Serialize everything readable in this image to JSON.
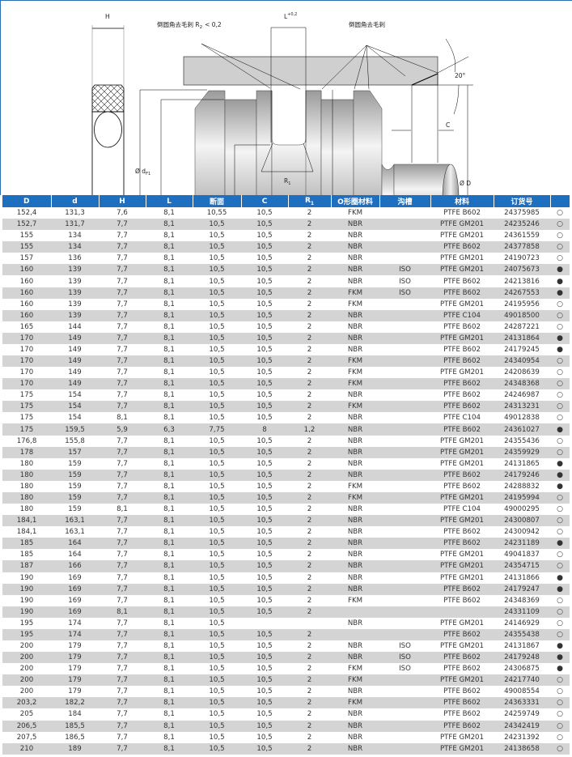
{
  "drawing": {
    "label_H": "H",
    "label_chamfer_r2": "倒圆角去毛刺 R",
    "label_r2_sub": "2",
    "label_r2_value": "< 0,2",
    "label_L": "L",
    "label_L_tol": "+0,2",
    "label_chamfer": "倒圆角去毛刺",
    "label_angle": "20°",
    "label_C": "C",
    "label_D": "Ø D",
    "label_dF1": "Ø d",
    "label_dF1_sub": "F1",
    "label_dF": "Ø d",
    "label_dF_sub": "F",
    "label_d": "Ø d",
    "label_d2": "Ø d",
    "label_d2_sub": "2",
    "label_R1": "R",
    "label_R1_sub": "1"
  },
  "table": {
    "headers": [
      "D",
      "d",
      "H",
      "L",
      "断面",
      "C",
      "R1",
      "O形圈材料",
      "沟槽",
      "材料",
      "订货号",
      ""
    ],
    "legend": {
      "filled": "●",
      "open": "○"
    },
    "header_color": "#1f6fc0",
    "stripe_color": "#d4d4d4",
    "rows": [
      [
        "152,4",
        "131,3",
        "7,6",
        "8,1",
        "10,55",
        "10,5",
        "2",
        "FKM",
        "",
        "PTFE B602",
        "24375985",
        "open"
      ],
      [
        "152,7",
        "131,7",
        "7,7",
        "8,1",
        "10,5",
        "10,5",
        "2",
        "NBR",
        "",
        "PTFE GM201",
        "24235246",
        "open"
      ],
      [
        "155",
        "134",
        "7,7",
        "8,1",
        "10,5",
        "10,5",
        "2",
        "NBR",
        "",
        "PTFE GM201",
        "24361559",
        "open"
      ],
      [
        "155",
        "134",
        "7,7",
        "8,1",
        "10,5",
        "10,5",
        "2",
        "NBR",
        "",
        "PTFE B602",
        "24377858",
        "open"
      ],
      [
        "157",
        "136",
        "7,7",
        "8,1",
        "10,5",
        "10,5",
        "2",
        "NBR",
        "",
        "PTFE GM201",
        "24190723",
        "open"
      ],
      [
        "160",
        "139",
        "7,7",
        "8,1",
        "10,5",
        "10,5",
        "2",
        "NBR",
        "ISO",
        "PTFE GM201",
        "24075673",
        "filled"
      ],
      [
        "160",
        "139",
        "7,7",
        "8,1",
        "10,5",
        "10,5",
        "2",
        "NBR",
        "ISO",
        "PTFE B602",
        "24213816",
        "filled"
      ],
      [
        "160",
        "139",
        "7,7",
        "8,1",
        "10,5",
        "10,5",
        "2",
        "FKM",
        "ISO",
        "PTFE B602",
        "24267553",
        "filled"
      ],
      [
        "160",
        "139",
        "7,7",
        "8,1",
        "10,5",
        "10,5",
        "2",
        "FKM",
        "",
        "PTFE GM201",
        "24195956",
        "open"
      ],
      [
        "160",
        "139",
        "7,7",
        "8,1",
        "10,5",
        "10,5",
        "2",
        "NBR",
        "",
        "PTFE C104",
        "49018500",
        "open"
      ],
      [
        "165",
        "144",
        "7,7",
        "8,1",
        "10,5",
        "10,5",
        "2",
        "NBR",
        "",
        "PTFE B602",
        "24287221",
        "open"
      ],
      [
        "170",
        "149",
        "7,7",
        "8,1",
        "10,5",
        "10,5",
        "2",
        "NBR",
        "",
        "PTFE GM201",
        "24131864",
        "filled"
      ],
      [
        "170",
        "149",
        "7,7",
        "8,1",
        "10,5",
        "10,5",
        "2",
        "NBR",
        "",
        "PTFE B602",
        "24179245",
        "filled"
      ],
      [
        "170",
        "149",
        "7,7",
        "8,1",
        "10,5",
        "10,5",
        "2",
        "FKM",
        "",
        "PTFE B602",
        "24340954",
        "open"
      ],
      [
        "170",
        "149",
        "7,7",
        "8,1",
        "10,5",
        "10,5",
        "2",
        "FKM",
        "",
        "PTFE GM201",
        "24208639",
        "open"
      ],
      [
        "170",
        "149",
        "7,7",
        "8,1",
        "10,5",
        "10,5",
        "2",
        "FKM",
        "",
        "PTFE B602",
        "24348368",
        "open"
      ],
      [
        "175",
        "154",
        "7,7",
        "8,1",
        "10,5",
        "10,5",
        "2",
        "NBR",
        "",
        "PTFE B602",
        "24246987",
        "open"
      ],
      [
        "175",
        "154",
        "7,7",
        "8,1",
        "10,5",
        "10,5",
        "2",
        "FKM",
        "",
        "PTFE B602",
        "24313231",
        "open"
      ],
      [
        "175",
        "154",
        "8,1",
        "8,1",
        "10,5",
        "10,5",
        "2",
        "NBR",
        "",
        "PTFE C104",
        "49012838",
        "open"
      ],
      [
        "175",
        "159,5",
        "5,9",
        "6,3",
        "7,75",
        "8",
        "1,2",
        "NBR",
        "",
        "PTFE B602",
        "24361027",
        "filled"
      ],
      [
        "176,8",
        "155,8",
        "7,7",
        "8,1",
        "10,5",
        "10,5",
        "2",
        "NBR",
        "",
        "PTFE GM201",
        "24355436",
        "open"
      ],
      [
        "178",
        "157",
        "7,7",
        "8,1",
        "10,5",
        "10,5",
        "2",
        "NBR",
        "",
        "PTFE GM201",
        "24359929",
        "open"
      ],
      [
        "180",
        "159",
        "7,7",
        "8,1",
        "10,5",
        "10,5",
        "2",
        "NBR",
        "",
        "PTFE GM201",
        "24131865",
        "filled"
      ],
      [
        "180",
        "159",
        "7,7",
        "8,1",
        "10,5",
        "10,5",
        "2",
        "NBR",
        "",
        "PTFE B602",
        "24179246",
        "filled"
      ],
      [
        "180",
        "159",
        "7,7",
        "8,1",
        "10,5",
        "10,5",
        "2",
        "FKM",
        "",
        "PTFE B602",
        "24288832",
        "filled"
      ],
      [
        "180",
        "159",
        "7,7",
        "8,1",
        "10,5",
        "10,5",
        "2",
        "FKM",
        "",
        "PTFE GM201",
        "24195994",
        "open"
      ],
      [
        "180",
        "159",
        "8,1",
        "8,1",
        "10,5",
        "10,5",
        "2",
        "NBR",
        "",
        "PTFE C104",
        "49000295",
        "open"
      ],
      [
        "184,1",
        "163,1",
        "7,7",
        "8,1",
        "10,5",
        "10,5",
        "2",
        "NBR",
        "",
        "PTFE GM201",
        "24300807",
        "open"
      ],
      [
        "184,1",
        "163,1",
        "7,7",
        "8,1",
        "10,5",
        "10,5",
        "2",
        "NBR",
        "",
        "PTFE B602",
        "24300942",
        "open"
      ],
      [
        "185",
        "164",
        "7,7",
        "8,1",
        "10,5",
        "10,5",
        "2",
        "NBR",
        "",
        "PTFE B602",
        "24231189",
        "filled"
      ],
      [
        "185",
        "164",
        "7,7",
        "8,1",
        "10,5",
        "10,5",
        "2",
        "NBR",
        "",
        "PTFE GM201",
        "49041837",
        "open"
      ],
      [
        "187",
        "166",
        "7,7",
        "8,1",
        "10,5",
        "10,5",
        "2",
        "NBR",
        "",
        "PTFE GM201",
        "24354715",
        "open"
      ],
      [
        "190",
        "169",
        "7,7",
        "8,1",
        "10,5",
        "10,5",
        "2",
        "NBR",
        "",
        "PTFE GM201",
        "24131866",
        "filled"
      ],
      [
        "190",
        "169",
        "7,7",
        "8,1",
        "10,5",
        "10,5",
        "2",
        "NBR",
        "",
        "PTFE B602",
        "24179247",
        "filled"
      ],
      [
        "190",
        "169",
        "7,7",
        "8,1",
        "10,5",
        "10,5",
        "2",
        "FKM",
        "",
        "PTFE B602",
        "24348369",
        "open"
      ],
      [
        "190",
        "169",
        "8,1",
        "8,1",
        "10,5",
        "10,5",
        "2",
        "",
        "",
        "",
        "24331109",
        "open"
      ],
      [
        "195",
        "174",
        "7,7",
        "8,1",
        "10,5",
        "",
        "",
        "NBR",
        "",
        "PTFE GM201",
        "24146929",
        "open"
      ],
      [
        "195",
        "174",
        "7,7",
        "8,1",
        "10,5",
        "10,5",
        "2",
        "",
        "",
        "PTFE B602",
        "24355438",
        "open"
      ],
      [
        "200",
        "179",
        "7,7",
        "8,1",
        "10,5",
        "10,5",
        "2",
        "NBR",
        "ISO",
        "PTFE GM201",
        "24131867",
        "filled"
      ],
      [
        "200",
        "179",
        "7,7",
        "8,1",
        "10,5",
        "10,5",
        "2",
        "NBR",
        "ISO",
        "PTFE B602",
        "24179248",
        "filled"
      ],
      [
        "200",
        "179",
        "7,7",
        "8,1",
        "10,5",
        "10,5",
        "2",
        "FKM",
        "ISO",
        "PTFE B602",
        "24306875",
        "filled"
      ],
      [
        "200",
        "179",
        "7,7",
        "8,1",
        "10,5",
        "10,5",
        "2",
        "FKM",
        "",
        "PTFE GM201",
        "24217740",
        "open"
      ],
      [
        "200",
        "179",
        "7,7",
        "8,1",
        "10,5",
        "10,5",
        "2",
        "NBR",
        "",
        "PTFE B602",
        "49008554",
        "open"
      ],
      [
        "203,2",
        "182,2",
        "7,7",
        "8,1",
        "10,5",
        "10,5",
        "2",
        "FKM",
        "",
        "PTFE B602",
        "24363331",
        "open"
      ],
      [
        "205",
        "184",
        "7,7",
        "8,1",
        "10,5",
        "10,5",
        "2",
        "NBR",
        "",
        "PTFE B602",
        "24259749",
        "open"
      ],
      [
        "206,5",
        "185,5",
        "7,7",
        "8,1",
        "10,5",
        "10,5",
        "2",
        "NBR",
        "",
        "PTFE B602",
        "24342419",
        "open"
      ],
      [
        "207,5",
        "186,5",
        "7,7",
        "8,1",
        "10,5",
        "10,5",
        "2",
        "NBR",
        "",
        "PTFE GM201",
        "24231392",
        "open"
      ],
      [
        "210",
        "189",
        "7,7",
        "8,1",
        "10,5",
        "10,5",
        "2",
        "NBR",
        "",
        "PTFE GM201",
        "24138658",
        "open"
      ]
    ]
  }
}
